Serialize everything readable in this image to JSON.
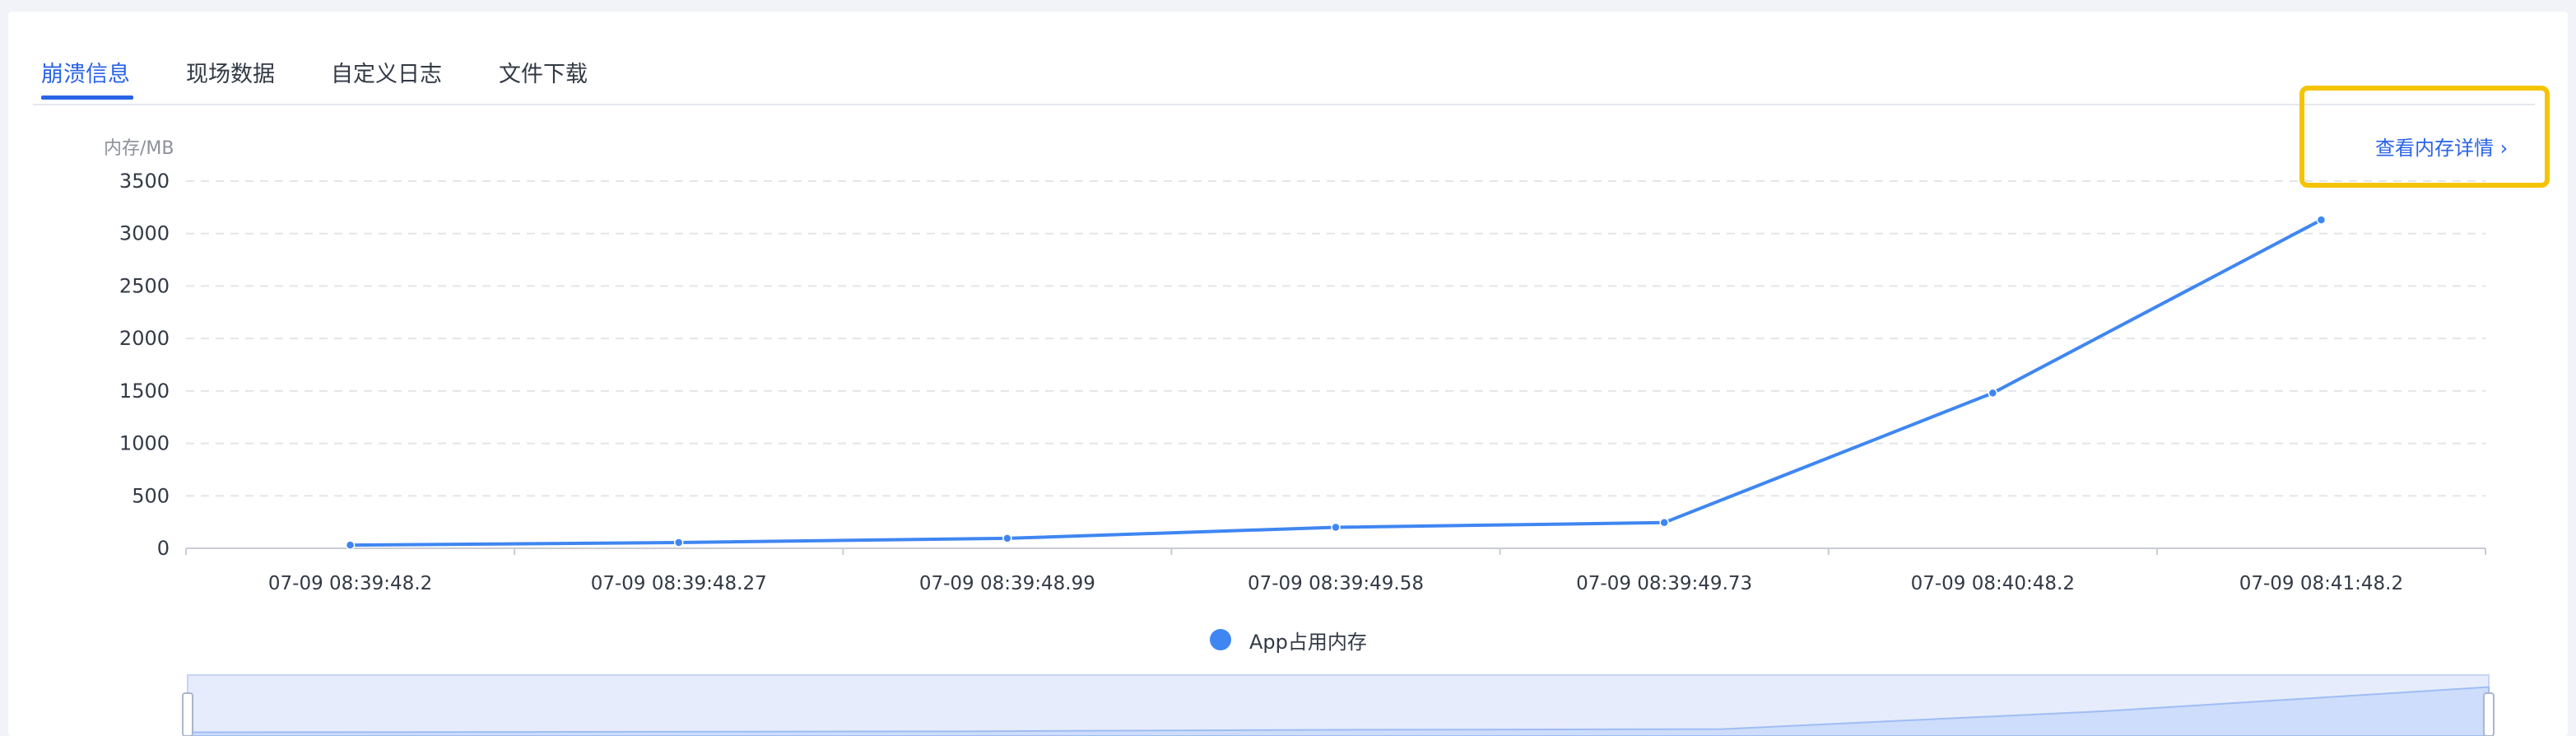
{
  "tabs": [
    {
      "label": "崩溃信息",
      "active": true
    },
    {
      "label": "现场数据",
      "active": false
    },
    {
      "label": "自定义日志",
      "active": false
    },
    {
      "label": "文件下载",
      "active": false
    }
  ],
  "detail_link": {
    "label": "查看内存详情 ›"
  },
  "colors": {
    "accent": "#2a63e6",
    "series": "#3f86f2",
    "highlight": "#f5c400"
  },
  "chart_data": {
    "type": "line",
    "ylabel": "内存/MB",
    "ylim": [
      0,
      3500
    ],
    "yticks": [
      0,
      500,
      1000,
      1500,
      2000,
      2500,
      3000,
      3500
    ],
    "grid": true,
    "legend_position": "bottom",
    "categories": [
      "07-09 08:39:48.2",
      "07-09 08:39:48.27",
      "07-09 08:39:48.99",
      "07-09 08:39:49.58",
      "07-09 08:39:49.73",
      "07-09 08:40:48.2",
      "07-09 08:41:48.2"
    ],
    "series": [
      {
        "name": "App占用内存",
        "values": [
          30,
          55,
          95,
          200,
          245,
          1480,
          3130
        ]
      }
    ]
  }
}
